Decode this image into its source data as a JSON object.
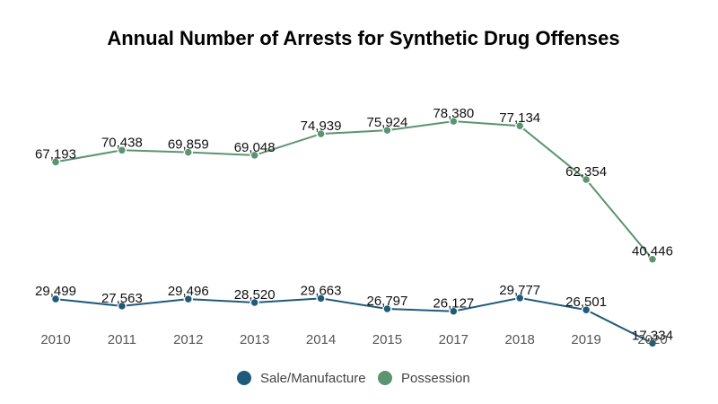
{
  "chart_data": {
    "type": "line",
    "title": "Annual Number of Arrests for Synthetic Drug Offenses",
    "xlabel": "",
    "ylabel": "",
    "categories": [
      "2010",
      "2011",
      "2012",
      "2013",
      "2014",
      "2015",
      "2017",
      "2018",
      "2019",
      "2020"
    ],
    "series": [
      {
        "name": "Sale/Manufacture",
        "color": "#1f5a7a",
        "values": [
          29499,
          27563,
          29496,
          28520,
          29663,
          26797,
          26127,
          29777,
          26501,
          17334
        ],
        "labels": [
          "29,499",
          "27,563",
          "29,496",
          "28,520",
          "29,663",
          "26,797",
          "26,127",
          "29,777",
          "26,501",
          "17,334"
        ]
      },
      {
        "name": "Possession",
        "color": "#5b9470",
        "values": [
          67193,
          70438,
          69859,
          69048,
          74939,
          75924,
          78380,
          77134,
          62354,
          40446
        ],
        "labels": [
          "67,193",
          "70,438",
          "69,859",
          "69,048",
          "74,939",
          "75,924",
          "78,380",
          "77,134",
          "62,354",
          "40,446"
        ]
      }
    ],
    "ylim": [
      10000,
      92000
    ],
    "grid": false,
    "legend_position": "bottom-center"
  }
}
